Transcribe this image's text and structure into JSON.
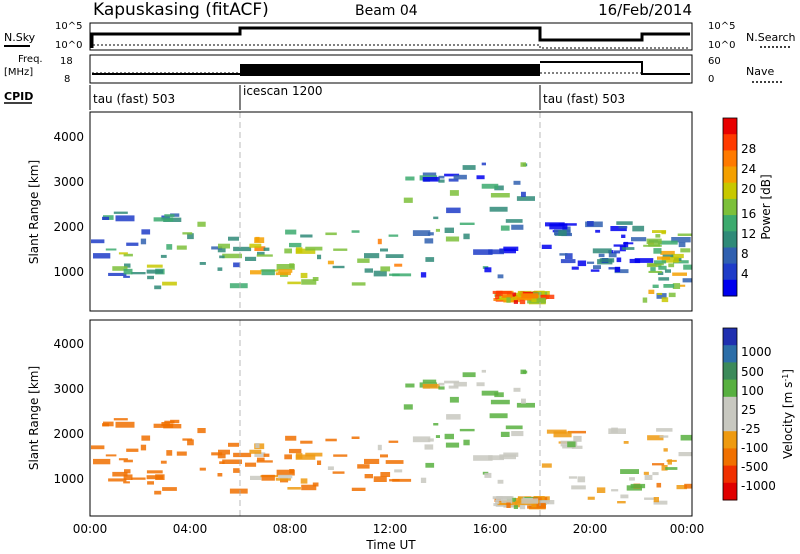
{
  "header": {
    "station": "Kapuskasing (fitACF)",
    "beam": "Beam 04",
    "date": "16/Feb/2014"
  },
  "panels": {
    "nsky": {
      "left_label": "N.Sky",
      "right_label": "N.Search",
      "left_ticks": [
        "10^5",
        "10^0"
      ],
      "right_ticks": [
        "10^5",
        "10^0"
      ]
    },
    "freq": {
      "left_label_1": "Freq.",
      "left_label_2": "[MHz]",
      "right_label": "Nave",
      "left_ticks": [
        "18",
        "8"
      ],
      "right_ticks": [
        "60",
        "0"
      ]
    },
    "cpid": {
      "left_label": "CPID",
      "segments": [
        {
          "label": "tau (fast) 503",
          "start_h": 0,
          "end_h": 6
        },
        {
          "label": "icescan 1200",
          "start_h": 6,
          "end_h": 18
        },
        {
          "label": "tau (fast) 503",
          "start_h": 18,
          "end_h": 24
        }
      ]
    }
  },
  "time_axis": {
    "label": "Time UT",
    "ticks": [
      "00:00",
      "04:00",
      "08:00",
      "12:00",
      "16:00",
      "20:00",
      "00:00"
    ]
  },
  "range_axis": {
    "label": "Slant Range [km]",
    "ticks": [
      "4000",
      "3000",
      "2000",
      "1000"
    ]
  },
  "power_bar": {
    "label": "Power [dB]",
    "ticks": [
      "28",
      "24",
      "20",
      "16",
      "12",
      "8",
      "4"
    ],
    "colors": [
      "#e80000",
      "#ff3a00",
      "#ff7a00",
      "#f4a000",
      "#c8c800",
      "#7cc03a",
      "#3caa6e",
      "#2f8a78",
      "#3060b0",
      "#1f3cc8",
      "#0000ee"
    ]
  },
  "velocity_bar": {
    "label": "Velocity [m s",
    "label_sup": "-1",
    "label_close": "]",
    "ticks": [
      "1000",
      "500",
      "100",
      "25",
      "-25",
      "-100",
      "-500",
      "-1000"
    ],
    "colors": [
      "#2030b0",
      "#2c6ea8",
      "#3c8a5a",
      "#58b040",
      "#c8c8c0",
      "#c8c8c0",
      "#ee9a10",
      "#f07000",
      "#f03000",
      "#e00000"
    ]
  },
  "chart_data": [
    {
      "type": "heatmap",
      "title": "Power [dB]",
      "xlabel": "Time UT",
      "ylabel": "Slant Range [km]",
      "xlim_hours": [
        0,
        24
      ],
      "ylim_km": [
        200,
        4600
      ],
      "colorbar": {
        "label": "Power [dB]",
        "ticks": [
          28,
          24,
          20,
          16,
          12,
          8,
          4
        ]
      },
      "echo_regions": [
        {
          "t_start_h": 0,
          "t_end_h": 6,
          "range_km": [
            600,
            2400
          ],
          "typical_dB": 12
        },
        {
          "t_start_h": 6,
          "t_end_h": 12.5,
          "range_km": [
            700,
            2000
          ],
          "typical_dB": 18
        },
        {
          "t_start_h": 12.5,
          "t_end_h": 17.5,
          "range_km": [
            900,
            3500
          ],
          "typical_dB": 10
        },
        {
          "t_start_h": 16,
          "t_end_h": 18,
          "range_km": [
            350,
            650
          ],
          "typical_dB": 24
        },
        {
          "t_start_h": 18,
          "t_end_h": 22,
          "range_km": [
            1000,
            2200
          ],
          "typical_dB": 6
        },
        {
          "t_start_h": 22,
          "t_end_h": 24,
          "range_km": [
            400,
            2000
          ],
          "typical_dB": 16
        }
      ]
    },
    {
      "type": "heatmap",
      "title": "Velocity [m s-1]",
      "xlabel": "Time UT",
      "ylabel": "Slant Range [km]",
      "xlim_hours": [
        0,
        24
      ],
      "ylim_km": [
        200,
        4600
      ],
      "colorbar": {
        "label": "Velocity [m s-1]",
        "ticks": [
          1000,
          500,
          100,
          25,
          -25,
          -100,
          -500,
          -1000
        ]
      },
      "echo_regions": [
        {
          "t_start_h": 0,
          "t_end_h": 6,
          "range_km": [
            600,
            2400
          ],
          "typical_ms": -300
        },
        {
          "t_start_h": 6,
          "t_end_h": 12.5,
          "range_km": [
            700,
            2000
          ],
          "typical_ms": -100
        },
        {
          "t_start_h": 12.5,
          "t_end_h": 17.5,
          "range_km": [
            900,
            3500
          ],
          "typical_ms": 100
        },
        {
          "t_start_h": 16,
          "t_end_h": 18,
          "range_km": [
            350,
            650
          ],
          "typical_ms": 0
        },
        {
          "t_start_h": 18,
          "t_end_h": 24,
          "range_km": [
            400,
            2200
          ],
          "typical_ms": 0
        }
      ]
    }
  ]
}
